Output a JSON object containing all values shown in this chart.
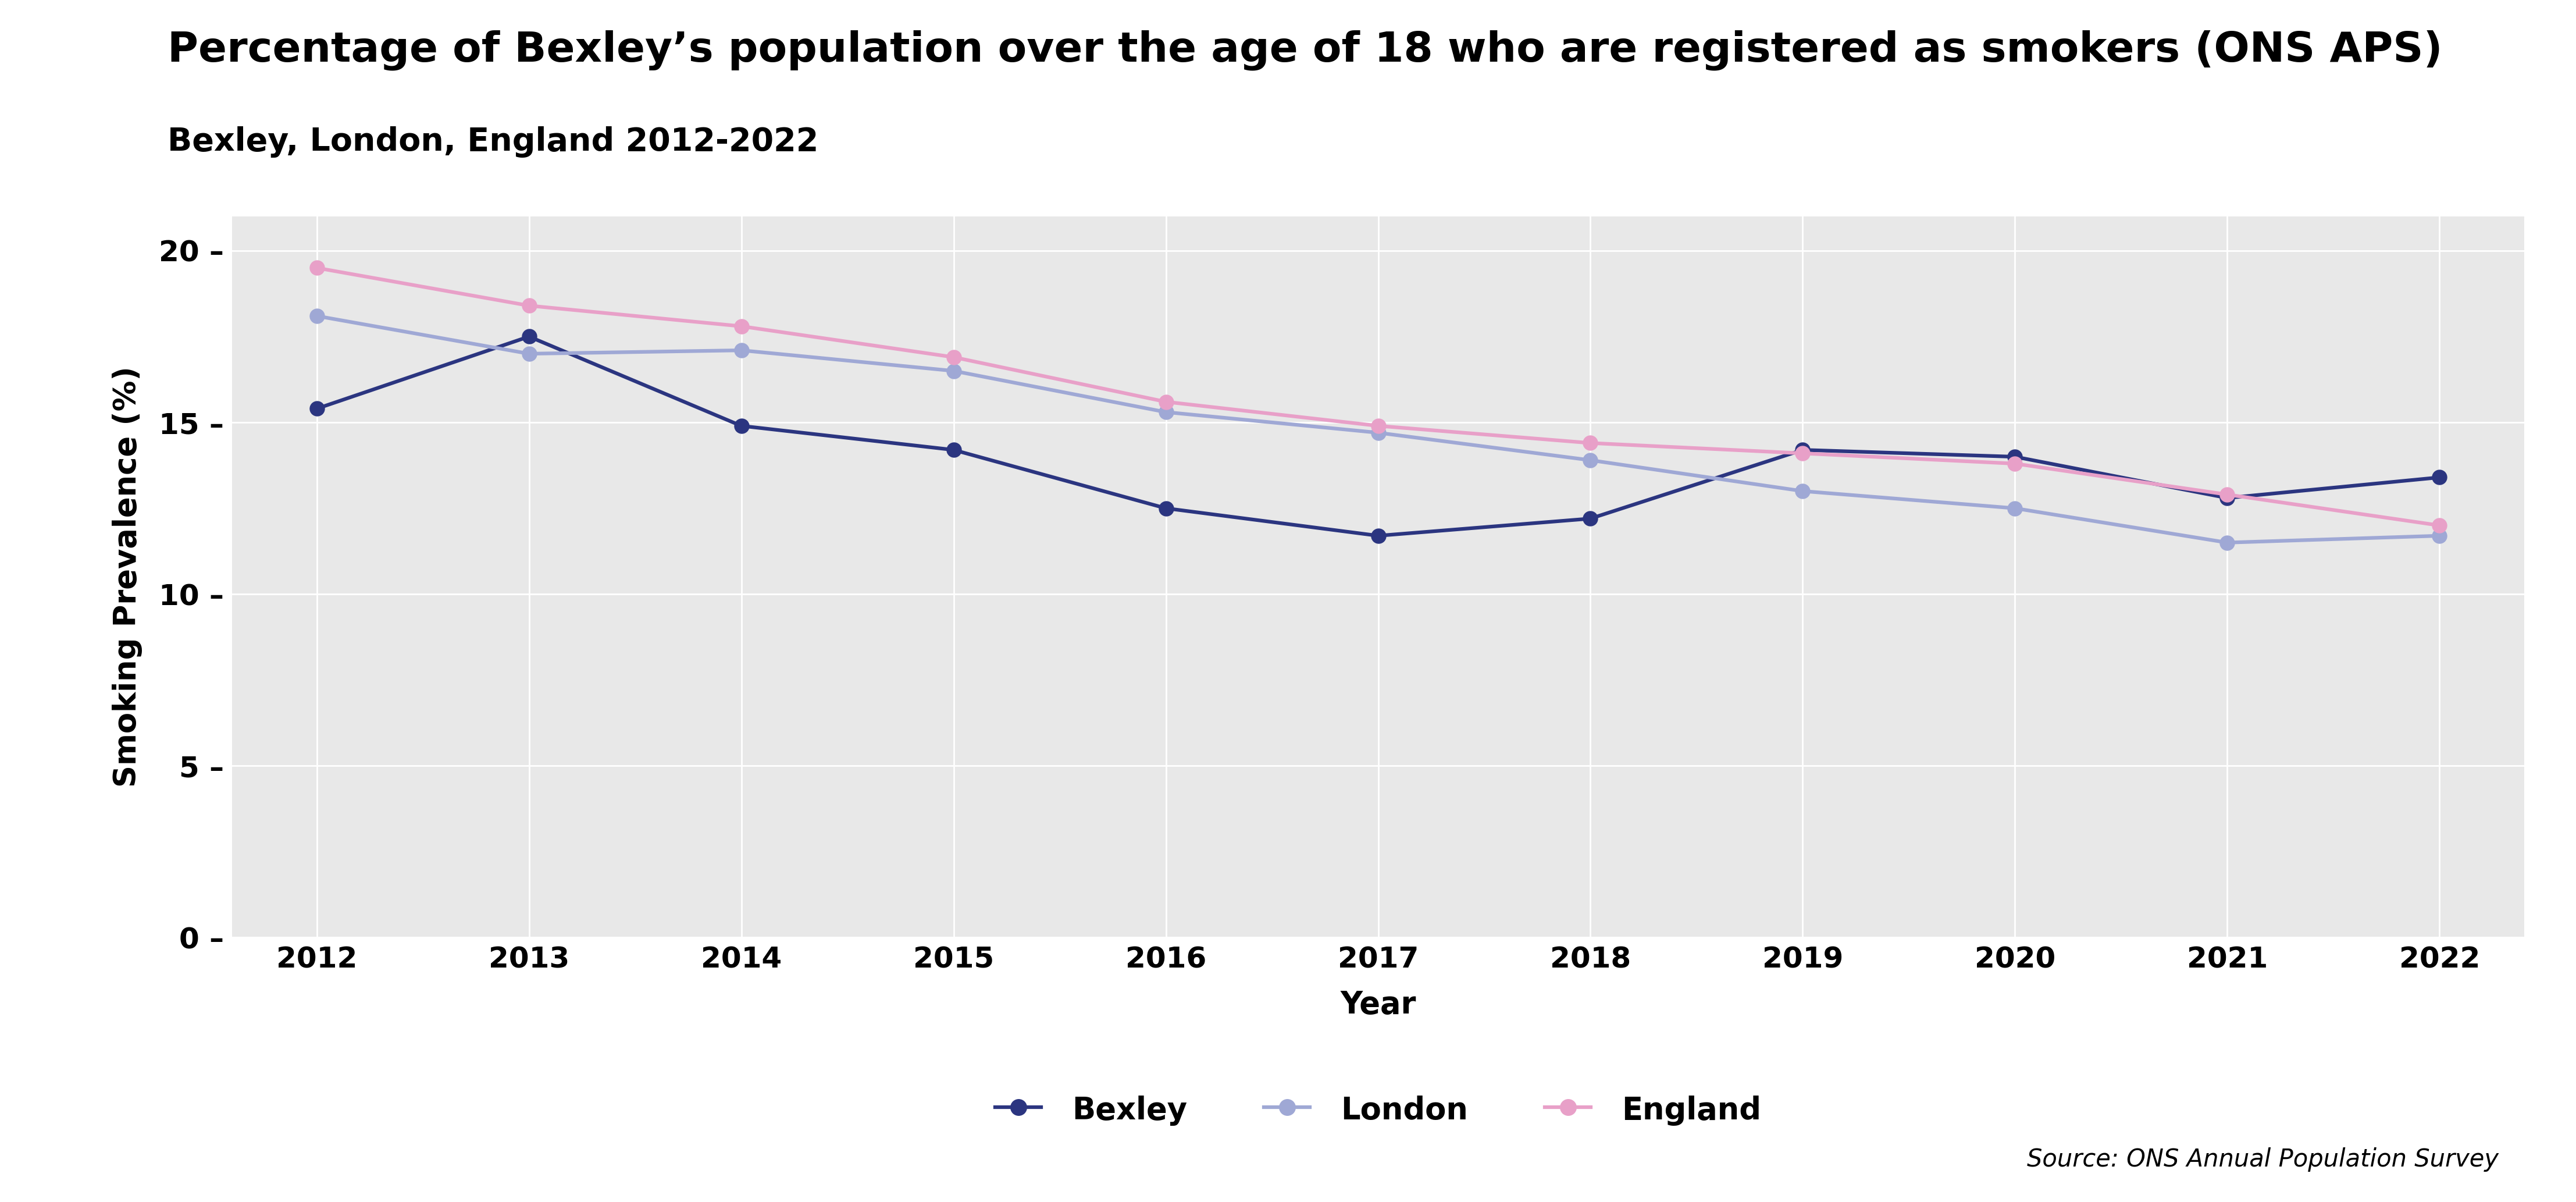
{
  "title": "Percentage of Bexley’s population over the age of 18 who are registered as smokers (ONS APS)",
  "subtitle": "Bexley, London, England 2012-2022",
  "xlabel": "Year",
  "ylabel": "Smoking Prevalence (%)",
  "source": "Source: ONS Annual Population Survey",
  "years": [
    2012,
    2013,
    2014,
    2015,
    2016,
    2017,
    2018,
    2019,
    2020,
    2021,
    2022
  ],
  "bexley": [
    15.4,
    17.5,
    14.9,
    14.2,
    12.5,
    11.7,
    12.2,
    14.2,
    14.0,
    12.8,
    13.4
  ],
  "london": [
    18.1,
    17.0,
    17.1,
    16.5,
    15.3,
    14.7,
    13.9,
    13.0,
    12.5,
    11.5,
    11.7
  ],
  "england": [
    19.5,
    18.4,
    17.8,
    16.9,
    15.6,
    14.9,
    14.4,
    14.1,
    13.8,
    12.9,
    12.0
  ],
  "bexley_color": "#2b3580",
  "london_color": "#9fa8d5",
  "england_color": "#e8a0c8",
  "plot_bg_color": "#e8e8e8",
  "fig_bg_color": "#ffffff",
  "ylim": [
    0,
    21
  ],
  "yticks": [
    0,
    5,
    10,
    15,
    20
  ],
  "title_fontsize": 52,
  "subtitle_fontsize": 40,
  "axis_label_fontsize": 38,
  "tick_fontsize": 36,
  "legend_fontsize": 38,
  "source_fontsize": 30,
  "linewidth": 4.5,
  "markersize": 18
}
